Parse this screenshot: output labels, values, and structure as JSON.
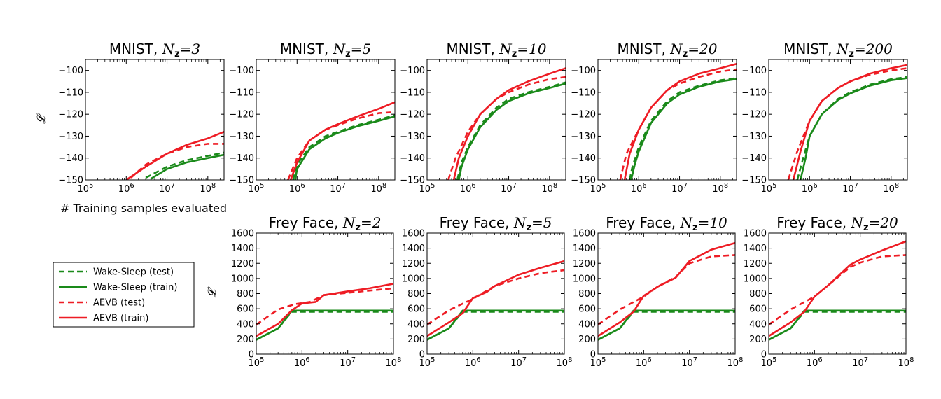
{
  "colors": {
    "wake_sleep": "#1a8a1a",
    "aevb": "#ee1c24"
  },
  "legend": {
    "entries": [
      {
        "label": "Wake-Sleep (test)",
        "color": "#1a8a1a",
        "style": "dashed"
      },
      {
        "label": "Wake-Sleep (train)",
        "color": "#1a8a1a",
        "style": "solid"
      },
      {
        "label": "AEVB (test)",
        "color": "#ee1c24",
        "style": "dashed"
      },
      {
        "label": "AEVB (train)",
        "color": "#ee1c24",
        "style": "solid"
      }
    ]
  },
  "shared_xlabel": "# Training samples evaluated",
  "chart_data": [
    {
      "type": "line",
      "title_prefix": "MNIST, ",
      "title_n": "N",
      "title_sub": "z",
      "title_eq": "=3",
      "xscale": "log",
      "xlim": [
        100000,
        250000000
      ],
      "ylim": [
        -150,
        -95
      ],
      "xticks": [
        "10^5",
        "10^6",
        "10^7",
        "10^8"
      ],
      "yticks": [
        -150,
        -140,
        -130,
        -120,
        -110,
        -100
      ],
      "ylabel": "𝓛",
      "series": [
        {
          "name": "Wake-Sleep (test)",
          "x": [
            3000000,
            10000000,
            30000000,
            100000000,
            250000000
          ],
          "y": [
            -149,
            -144,
            -141,
            -139,
            -137.5
          ]
        },
        {
          "name": "Wake-Sleep (train)",
          "x": [
            4000000,
            10000000,
            30000000,
            100000000,
            250000000
          ],
          "y": [
            -149.5,
            -145,
            -142,
            -140,
            -138.5
          ]
        },
        {
          "name": "AEVB (test)",
          "x": [
            1300000,
            3000000,
            10000000,
            30000000,
            100000000,
            250000000
          ],
          "y": [
            -149,
            -143,
            -138,
            -135,
            -133.5,
            -133.5
          ]
        },
        {
          "name": "AEVB (train)",
          "x": [
            1000000,
            3000000,
            10000000,
            30000000,
            100000000,
            250000000
          ],
          "y": [
            -150,
            -144,
            -138,
            -134,
            -131,
            -128
          ]
        }
      ]
    },
    {
      "type": "line",
      "title_prefix": "MNIST, ",
      "title_n": "N",
      "title_sub": "z",
      "title_eq": "=5",
      "xscale": "log",
      "xlim": [
        100000,
        250000000
      ],
      "ylim": [
        -150,
        -95
      ],
      "xticks": [
        "10^5",
        "10^6",
        "10^7",
        "10^8"
      ],
      "yticks": [
        -150,
        -140,
        -130,
        -120,
        -110,
        -100
      ],
      "series": [
        {
          "name": "Wake-Sleep (test)",
          "x": [
            800000,
            1000000,
            2000000,
            5000000,
            10000000,
            30000000,
            100000000,
            250000000
          ],
          "y": [
            -150,
            -143,
            -135,
            -130,
            -128,
            -125,
            -122.5,
            -120.5
          ]
        },
        {
          "name": "Wake-Sleep (train)",
          "x": [
            900000,
            1000000,
            2000000,
            5000000,
            10000000,
            30000000,
            100000000,
            250000000
          ],
          "y": [
            -150,
            -145,
            -136,
            -131,
            -128.5,
            -125.5,
            -123,
            -121
          ]
        },
        {
          "name": "AEVB (test)",
          "x": [
            600000,
            1000000,
            2000000,
            5000000,
            10000000,
            30000000,
            100000000,
            250000000
          ],
          "y": [
            -150,
            -140,
            -132,
            -127,
            -125,
            -122,
            -119.5,
            -119
          ]
        },
        {
          "name": "AEVB (train)",
          "x": [
            700000,
            1000000,
            2000000,
            5000000,
            10000000,
            30000000,
            100000000,
            250000000
          ],
          "y": [
            -150,
            -142,
            -132,
            -127,
            -124.5,
            -121,
            -117.5,
            -114.5
          ]
        }
      ]
    },
    {
      "type": "line",
      "title_prefix": "MNIST, ",
      "title_n": "N",
      "title_sub": "z",
      "title_eq": "=10",
      "xscale": "log",
      "xlim": [
        100000,
        250000000
      ],
      "ylim": [
        -150,
        -95
      ],
      "xticks": [
        "10^5",
        "10^6",
        "10^7",
        "10^8"
      ],
      "yticks": [
        -150,
        -140,
        -130,
        -120,
        -110,
        -100
      ],
      "series": [
        {
          "name": "Wake-Sleep (test)",
          "x": [
            550000,
            700000,
            1000000,
            2000000,
            5000000,
            10000000,
            30000000,
            100000000,
            250000000
          ],
          "y": [
            -150,
            -142,
            -135,
            -125,
            -117,
            -113,
            -110,
            -107.5,
            -105.5
          ]
        },
        {
          "name": "Wake-Sleep (train)",
          "x": [
            600000,
            700000,
            1000000,
            2000000,
            5000000,
            10000000,
            30000000,
            100000000,
            250000000
          ],
          "y": [
            -150,
            -144,
            -136,
            -126,
            -118,
            -114,
            -110.5,
            -108,
            -106
          ]
        },
        {
          "name": "AEVB (test)",
          "x": [
            330000,
            500000,
            1000000,
            2000000,
            5000000,
            10000000,
            30000000,
            100000000,
            250000000
          ],
          "y": [
            -150,
            -140,
            -128,
            -120,
            -113,
            -110,
            -106.5,
            -104,
            -103
          ]
        },
        {
          "name": "AEVB (train)",
          "x": [
            450000,
            600000,
            1000000,
            2000000,
            5000000,
            10000000,
            30000000,
            100000000,
            250000000
          ],
          "y": [
            -150,
            -140,
            -130,
            -120,
            -113,
            -109,
            -105,
            -101.5,
            -99
          ]
        }
      ]
    },
    {
      "type": "line",
      "title_prefix": "MNIST, ",
      "title_n": "N",
      "title_sub": "z",
      "title_eq": "=20",
      "xscale": "log",
      "xlim": [
        100000,
        250000000
      ],
      "ylim": [
        -150,
        -95
      ],
      "xticks": [
        "10^5",
        "10^6",
        "10^7",
        "10^8"
      ],
      "yticks": [
        -150,
        -140,
        -130,
        -120,
        -110,
        -100
      ],
      "series": [
        {
          "name": "Wake-Sleep (test)",
          "x": [
            600000,
            700000,
            1000000,
            2000000,
            5000000,
            10000000,
            30000000,
            100000000,
            250000000
          ],
          "y": [
            -150,
            -144,
            -135,
            -123,
            -114,
            -110,
            -107,
            -104.5,
            -103.5
          ]
        },
        {
          "name": "Wake-Sleep (train)",
          "x": [
            650000,
            800000,
            1000000,
            2000000,
            5000000,
            10000000,
            30000000,
            100000000,
            250000000
          ],
          "y": [
            -150,
            -143,
            -137,
            -124,
            -115,
            -111,
            -107.5,
            -105,
            -104
          ]
        },
        {
          "name": "AEVB (test)",
          "x": [
            350000,
            500000,
            1000000,
            2000000,
            5000000,
            10000000,
            30000000,
            100000000,
            250000000
          ],
          "y": [
            -150,
            -138,
            -127,
            -117,
            -109,
            -106,
            -103,
            -100.5,
            -99.5
          ]
        },
        {
          "name": "AEVB (train)",
          "x": [
            450000,
            600000,
            1000000,
            2000000,
            5000000,
            10000000,
            30000000,
            100000000,
            250000000
          ],
          "y": [
            -150,
            -138,
            -127,
            -117,
            -109,
            -105,
            -101.5,
            -99,
            -97
          ]
        }
      ]
    },
    {
      "type": "line",
      "title_prefix": "MNIST, ",
      "title_n": "N",
      "title_sub": "z",
      "title_eq": "=200",
      "xscale": "log",
      "xlim": [
        100000,
        250000000
      ],
      "ylim": [
        -150,
        -95
      ],
      "xticks": [
        "10^5",
        "10^6",
        "10^7",
        "10^8"
      ],
      "yticks": [
        -150,
        -140,
        -130,
        -120,
        -110,
        -100
      ],
      "series": [
        {
          "name": "Wake-Sleep (test)",
          "x": [
            500000,
            700000,
            1000000,
            2000000,
            5000000,
            10000000,
            30000000,
            100000000,
            250000000
          ],
          "y": [
            -150,
            -140,
            -130,
            -120,
            -113,
            -110,
            -106.5,
            -104,
            -103
          ]
        },
        {
          "name": "Wake-Sleep (train)",
          "x": [
            600000,
            800000,
            1000000,
            2000000,
            5000000,
            10000000,
            30000000,
            100000000,
            250000000
          ],
          "y": [
            -150,
            -140,
            -130,
            -120,
            -113.5,
            -110.5,
            -107,
            -104.5,
            -103.5
          ]
        },
        {
          "name": "AEVB (test)",
          "x": [
            300000,
            500000,
            1000000,
            2000000,
            5000000,
            10000000,
            30000000,
            100000000,
            250000000
          ],
          "y": [
            -150,
            -137,
            -123,
            -114,
            -108,
            -105,
            -102,
            -100,
            -99
          ]
        },
        {
          "name": "AEVB (train)",
          "x": [
            400000,
            600000,
            1000000,
            2000000,
            5000000,
            10000000,
            30000000,
            100000000,
            250000000
          ],
          "y": [
            -150,
            -137,
            -123,
            -114,
            -108,
            -105,
            -101.5,
            -99,
            -97.5
          ]
        }
      ]
    },
    {
      "type": "line",
      "title_prefix": "Frey Face, ",
      "title_n": "N",
      "title_sub": "z",
      "title_eq": "=2",
      "xscale": "log",
      "xlim": [
        100000,
        100000000
      ],
      "ylim": [
        0,
        1600
      ],
      "xticks": [
        "10^5",
        "10^6",
        "10^7",
        "10^8"
      ],
      "yticks": [
        0,
        200,
        400,
        600,
        800,
        1000,
        1200,
        1400,
        1600
      ],
      "ylabel": "𝓛",
      "series": [
        {
          "name": "Wake-Sleep (test)",
          "x": [
            100000,
            300000,
            600000,
            100000000
          ],
          "y": [
            190,
            340,
            560,
            560
          ]
        },
        {
          "name": "Wake-Sleep (train)",
          "x": [
            100000,
            300000,
            600000,
            100000000
          ],
          "y": [
            190,
            340,
            575,
            575
          ]
        },
        {
          "name": "AEVB (test)",
          "x": [
            100000,
            300000,
            700000,
            1500000,
            3000000,
            10000000,
            30000000,
            100000000
          ],
          "y": [
            390,
            590,
            660,
            690,
            780,
            810,
            840,
            870
          ]
        },
        {
          "name": "AEVB (train)",
          "x": [
            100000,
            300000,
            600000,
            1000000,
            2000000,
            3000000,
            10000000,
            30000000,
            100000000
          ],
          "y": [
            240,
            400,
            580,
            670,
            690,
            780,
            830,
            870,
            930
          ]
        }
      ]
    },
    {
      "type": "line",
      "title_prefix": "Frey Face, ",
      "title_n": "N",
      "title_sub": "z",
      "title_eq": "=5",
      "xscale": "log",
      "xlim": [
        100000,
        100000000
      ],
      "ylim": [
        0,
        1600
      ],
      "xticks": [
        "10^5",
        "10^6",
        "10^7",
        "10^8"
      ],
      "yticks": [
        0,
        200,
        400,
        600,
        800,
        1000,
        1200,
        1400,
        1600
      ],
      "series": [
        {
          "name": "Wake-Sleep (test)",
          "x": [
            100000,
            300000,
            600000,
            100000000
          ],
          "y": [
            190,
            340,
            560,
            560
          ]
        },
        {
          "name": "Wake-Sleep (train)",
          "x": [
            100000,
            300000,
            600000,
            100000000
          ],
          "y": [
            190,
            340,
            575,
            575
          ]
        },
        {
          "name": "AEVB (test)",
          "x": [
            100000,
            300000,
            1000000,
            3000000,
            10000000,
            30000000,
            100000000
          ],
          "y": [
            390,
            580,
            730,
            900,
            1000,
            1070,
            1110
          ]
        },
        {
          "name": "AEVB (train)",
          "x": [
            100000,
            300000,
            600000,
            1000000,
            2000000,
            3000000,
            10000000,
            30000000,
            100000000
          ],
          "y": [
            240,
            420,
            540,
            740,
            820,
            900,
            1050,
            1140,
            1230
          ]
        }
      ]
    },
    {
      "type": "line",
      "title_prefix": "Frey Face, ",
      "title_n": "N",
      "title_sub": "z",
      "title_eq": "=10",
      "xscale": "log",
      "xlim": [
        100000,
        100000000
      ],
      "ylim": [
        0,
        1600
      ],
      "xticks": [
        "10^5",
        "10^6",
        "10^7",
        "10^8"
      ],
      "yticks": [
        0,
        200,
        400,
        600,
        800,
        1000,
        1200,
        1400,
        1600
      ],
      "series": [
        {
          "name": "Wake-Sleep (test)",
          "x": [
            100000,
            300000,
            600000,
            100000000
          ],
          "y": [
            190,
            340,
            560,
            560
          ]
        },
        {
          "name": "Wake-Sleep (train)",
          "x": [
            100000,
            300000,
            600000,
            100000000
          ],
          "y": [
            190,
            340,
            575,
            575
          ]
        },
        {
          "name": "AEVB (test)",
          "x": [
            100000,
            300000,
            1000000,
            2000000,
            5000000,
            10000000,
            30000000,
            100000000
          ],
          "y": [
            390,
            590,
            760,
            890,
            1020,
            1200,
            1290,
            1310
          ]
        },
        {
          "name": "AEVB (train)",
          "x": [
            100000,
            300000,
            600000,
            1000000,
            2000000,
            5000000,
            10000000,
            30000000,
            100000000
          ],
          "y": [
            240,
            420,
            560,
            770,
            890,
            1010,
            1230,
            1380,
            1470
          ]
        }
      ]
    },
    {
      "type": "line",
      "title_prefix": "Frey Face, ",
      "title_n": "N",
      "title_sub": "z",
      "title_eq": "=20",
      "xscale": "log",
      "xlim": [
        100000,
        100000000
      ],
      "ylim": [
        0,
        1600
      ],
      "xticks": [
        "10^5",
        "10^6",
        "10^7",
        "10^8"
      ],
      "yticks": [
        0,
        200,
        400,
        600,
        800,
        1000,
        1200,
        1400,
        1600
      ],
      "series": [
        {
          "name": "Wake-Sleep (test)",
          "x": [
            100000,
            300000,
            600000,
            100000000
          ],
          "y": [
            190,
            340,
            560,
            560
          ]
        },
        {
          "name": "Wake-Sleep (train)",
          "x": [
            100000,
            300000,
            600000,
            100000000
          ],
          "y": [
            190,
            340,
            575,
            575
          ]
        },
        {
          "name": "AEVB (test)",
          "x": [
            100000,
            300000,
            1000000,
            2000000,
            6000000,
            10000000,
            30000000,
            100000000
          ],
          "y": [
            390,
            590,
            760,
            910,
            1150,
            1210,
            1290,
            1310
          ]
        },
        {
          "name": "AEVB (train)",
          "x": [
            100000,
            300000,
            600000,
            1000000,
            2000000,
            6000000,
            10000000,
            30000000,
            100000000
          ],
          "y": [
            240,
            420,
            560,
            760,
            910,
            1180,
            1250,
            1370,
            1490
          ]
        }
      ]
    }
  ]
}
